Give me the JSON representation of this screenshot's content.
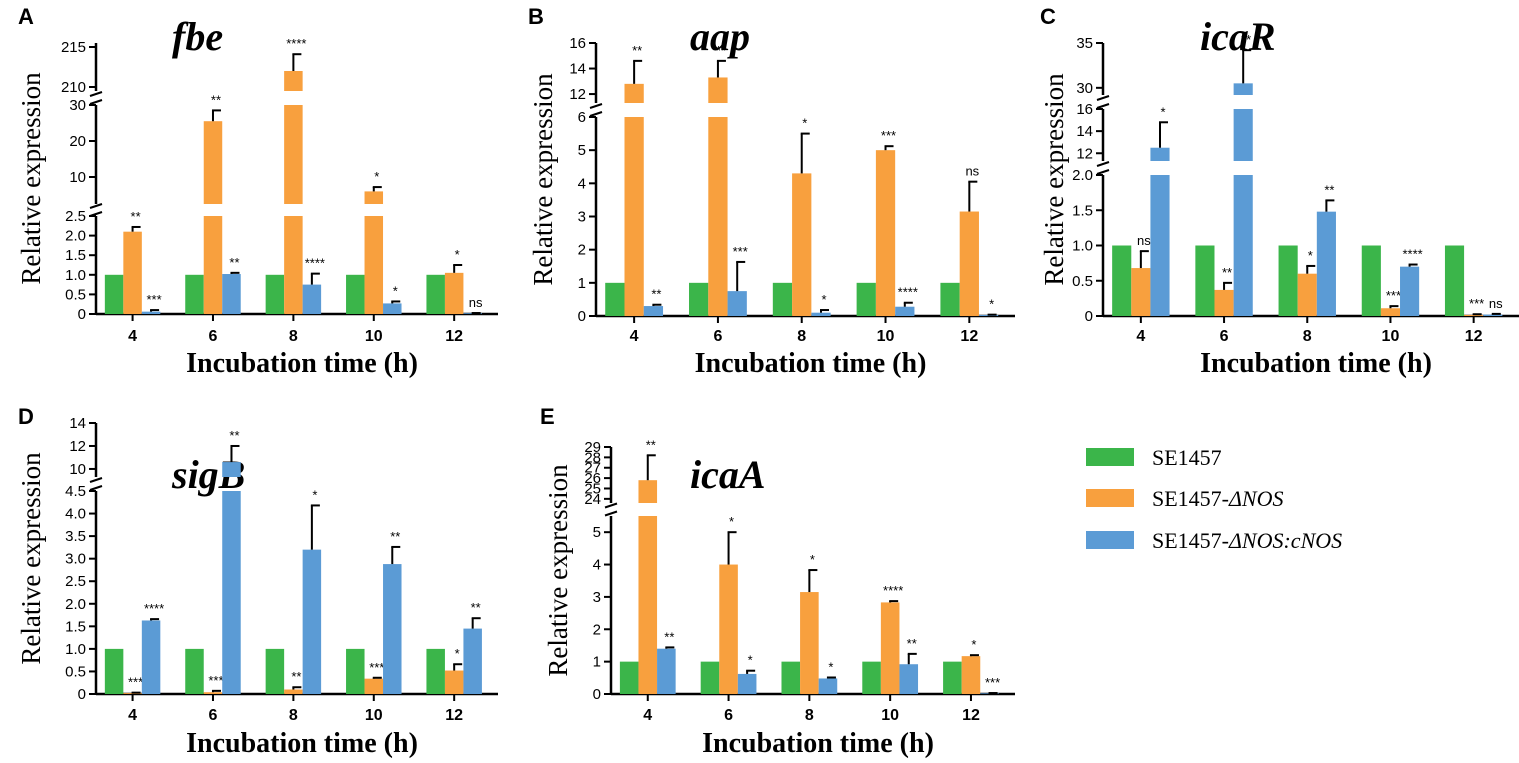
{
  "chart_data": [
    {
      "type": "bar",
      "panel": "A",
      "title": "fbe",
      "xlabel": "Incubation time (h)",
      "ylabel": "Relative expression",
      "categories": [
        "4",
        "6",
        "8",
        "10",
        "12"
      ],
      "broken_axis": true,
      "segments": [
        {
          "range": [
            0,
            2.5
          ],
          "ticks": [
            "0",
            "0.5",
            "1.0",
            "1.5",
            "2.0",
            "2.5"
          ],
          "tick_values": [
            0,
            0.5,
            1,
            1.5,
            2,
            2.5
          ]
        },
        {
          "range": [
            2.5,
            30
          ],
          "ticks": [
            "10",
            "20",
            "30"
          ],
          "tick_values": [
            10,
            20,
            30
          ]
        },
        {
          "range": [
            209.5,
            215.5
          ],
          "ticks": [
            "210",
            "215"
          ],
          "tick_values": [
            210,
            215
          ]
        }
      ],
      "series": [
        {
          "name": "SE1457",
          "values": [
            1,
            1,
            1,
            1,
            1
          ],
          "errors": [
            0,
            0,
            0,
            0,
            0
          ],
          "labels": [
            "",
            "",
            "",
            "",
            ""
          ]
        },
        {
          "name": "SE1457-ΔNOS",
          "values": [
            2.1,
            25.5,
            212,
            6.0,
            1.05
          ],
          "errors": [
            0.12,
            3.0,
            2.1,
            1.2,
            0.2
          ],
          "labels": [
            "**",
            "**",
            "****",
            "*",
            "*"
          ]
        },
        {
          "name": "SE1457-ΔNOS:cNOS",
          "values": [
            0.06,
            1.02,
            0.75,
            0.27,
            0.02
          ],
          "errors": [
            0.04,
            0.03,
            0.28,
            0.05,
            0.005
          ],
          "labels": [
            "***",
            "**",
            "****",
            "*",
            "ns"
          ]
        }
      ]
    },
    {
      "type": "bar",
      "panel": "B",
      "title": "aap",
      "xlabel": "Incubation time (h)",
      "ylabel": "Relative expression",
      "categories": [
        "4",
        "6",
        "8",
        "10",
        "12"
      ],
      "broken_axis": true,
      "segments": [
        {
          "range": [
            0,
            6
          ],
          "ticks": [
            "0",
            "1",
            "2",
            "3",
            "4",
            "5",
            "6"
          ],
          "tick_values": [
            0,
            1,
            2,
            3,
            4,
            5,
            6
          ]
        },
        {
          "range": [
            11.3,
            16
          ],
          "ticks": [
            "12",
            "14",
            "16"
          ],
          "tick_values": [
            12,
            14,
            16
          ]
        }
      ],
      "series": [
        {
          "name": "SE1457",
          "values": [
            1,
            1,
            1,
            1,
            1
          ],
          "errors": [
            0,
            0,
            0,
            0,
            0
          ],
          "labels": [
            "",
            "",
            "",
            "",
            ""
          ]
        },
        {
          "name": "SE1457-ΔNOS",
          "values": [
            12.8,
            13.3,
            4.3,
            5.0,
            3.15
          ],
          "errors": [
            1.8,
            1.3,
            1.2,
            0.12,
            0.9
          ],
          "labels": [
            "**",
            "**",
            "*",
            "***",
            "ns"
          ]
        },
        {
          "name": "SE1457-ΔNOS:cNOS",
          "values": [
            0.3,
            0.75,
            0.1,
            0.28,
            0.03
          ],
          "errors": [
            0.04,
            0.88,
            0.08,
            0.12,
            0.01
          ],
          "labels": [
            "**",
            "***",
            "*",
            "****",
            "*"
          ]
        }
      ]
    },
    {
      "type": "bar",
      "panel": "C",
      "title": "icaR",
      "xlabel": "Incubation time (h)",
      "ylabel": "Relative expression",
      "categories": [
        "4",
        "6",
        "8",
        "10",
        "12"
      ],
      "broken_axis": true,
      "segments": [
        {
          "range": [
            0,
            2
          ],
          "ticks": [
            "0",
            "0.5",
            "1.0",
            "1.5",
            "2.0"
          ],
          "tick_values": [
            0,
            0.5,
            1,
            1.5,
            2
          ]
        },
        {
          "range": [
            11.3,
            16
          ],
          "ticks": [
            "12",
            "14",
            "16"
          ],
          "tick_values": [
            12,
            14,
            16
          ]
        },
        {
          "range": [
            29.2,
            35
          ],
          "ticks": [
            "30",
            "35"
          ],
          "tick_values": [
            30,
            35
          ]
        }
      ],
      "series": [
        {
          "name": "SE1457",
          "values": [
            1,
            1,
            1,
            1,
            1
          ],
          "errors": [
            0,
            0,
            0,
            0,
            0
          ],
          "labels": [
            "",
            "",
            "",
            "",
            ""
          ]
        },
        {
          "name": "SE1457-ΔNOS",
          "values": [
            0.68,
            0.37,
            0.6,
            0.11,
            0.015
          ],
          "errors": [
            0.24,
            0.1,
            0.11,
            0.03,
            0.01
          ],
          "labels": [
            "ns",
            "**",
            "*",
            "***",
            "***"
          ]
        },
        {
          "name": "SE1457-ΔNOS:cNOS",
          "values": [
            12.5,
            30.5,
            1.48,
            0.7,
            0.02
          ],
          "errors": [
            2.3,
            3.7,
            0.16,
            0.03,
            0.01
          ],
          "labels": [
            "*",
            "**",
            "**",
            "****",
            "ns"
          ]
        }
      ]
    },
    {
      "type": "bar",
      "panel": "D",
      "title": "sigB",
      "xlabel": "Incubation time (h)",
      "ylabel": "Relative expression",
      "categories": [
        "4",
        "6",
        "8",
        "10",
        "12"
      ],
      "broken_axis": true,
      "segments": [
        {
          "range": [
            0,
            4.5
          ],
          "ticks": [
            "0",
            "0.5",
            "1.0",
            "1.5",
            "2.0",
            "2.5",
            "3.0",
            "3.5",
            "4.0",
            "4.5"
          ],
          "tick_values": [
            0,
            0.5,
            1,
            1.5,
            2,
            2.5,
            3,
            3.5,
            4,
            4.5
          ]
        },
        {
          "range": [
            9.3,
            14
          ],
          "ticks": [
            "10",
            "12",
            "14"
          ],
          "tick_values": [
            10,
            12,
            14
          ]
        }
      ],
      "series": [
        {
          "name": "SE1457",
          "values": [
            1,
            1,
            1,
            1,
            1
          ],
          "errors": [
            0,
            0,
            0,
            0,
            0
          ],
          "labels": [
            "",
            "",
            "",
            "",
            ""
          ]
        },
        {
          "name": "SE1457-ΔNOS",
          "values": [
            0.02,
            0.04,
            0.1,
            0.34,
            0.52
          ],
          "errors": [
            0.01,
            0.03,
            0.05,
            0.02,
            0.14
          ],
          "labels": [
            "***",
            "***",
            "**",
            "***",
            "*"
          ]
        },
        {
          "name": "SE1457-ΔNOS:cNOS",
          "values": [
            1.63,
            10.6,
            3.2,
            2.88,
            1.45
          ],
          "errors": [
            0.03,
            1.4,
            0.98,
            0.38,
            0.23
          ],
          "labels": [
            "****",
            "**",
            "*",
            "**",
            "**"
          ]
        }
      ]
    },
    {
      "type": "bar",
      "panel": "E",
      "title": "icaA",
      "xlabel": "Incubation time (h)",
      "ylabel": "Relative expression",
      "categories": [
        "4",
        "6",
        "8",
        "10",
        "12"
      ],
      "broken_axis": true,
      "segments": [
        {
          "range": [
            0,
            5.5
          ],
          "ticks": [
            "0",
            "1",
            "2",
            "3",
            "4",
            "5"
          ],
          "tick_values": [
            0,
            1,
            2,
            3,
            4,
            5
          ]
        },
        {
          "range": [
            23.6,
            29
          ],
          "ticks": [
            "24",
            "25",
            "26",
            "27",
            "28",
            "29"
          ],
          "tick_values": [
            24,
            25,
            26,
            27,
            28,
            29
          ]
        }
      ],
      "series": [
        {
          "name": "SE1457",
          "values": [
            1,
            1,
            1,
            1,
            1
          ],
          "errors": [
            0,
            0,
            0,
            0,
            0
          ],
          "labels": [
            "",
            "",
            "",
            "",
            ""
          ]
        },
        {
          "name": "SE1457-ΔNOS",
          "values": [
            25.8,
            4.0,
            3.15,
            2.83,
            1.17
          ],
          "errors": [
            2.4,
            1.0,
            0.68,
            0.04,
            0.03
          ],
          "labels": [
            "**",
            "*",
            "*",
            "****",
            "*"
          ]
        },
        {
          "name": "SE1457-ΔNOS:cNOS",
          "values": [
            1.4,
            0.62,
            0.48,
            0.92,
            0.02
          ],
          "errors": [
            0.04,
            0.1,
            0.03,
            0.32,
            0.01
          ],
          "labels": [
            "**",
            "*",
            "*",
            "**",
            "***"
          ]
        }
      ]
    }
  ],
  "legend": {
    "items": [
      {
        "prefix": "SE1457",
        "italic": ""
      },
      {
        "prefix": "SE1457-",
        "italic": "ΔNOS"
      },
      {
        "prefix": "SE1457-",
        "italic": "ΔNOS:cNOS"
      }
    ]
  },
  "colors": {
    "SE1457": "#3bb54a",
    "SE1457-ΔNOS": "#f8a03e",
    "SE1457-ΔNOS:cNOS": "#5b9bd5"
  }
}
